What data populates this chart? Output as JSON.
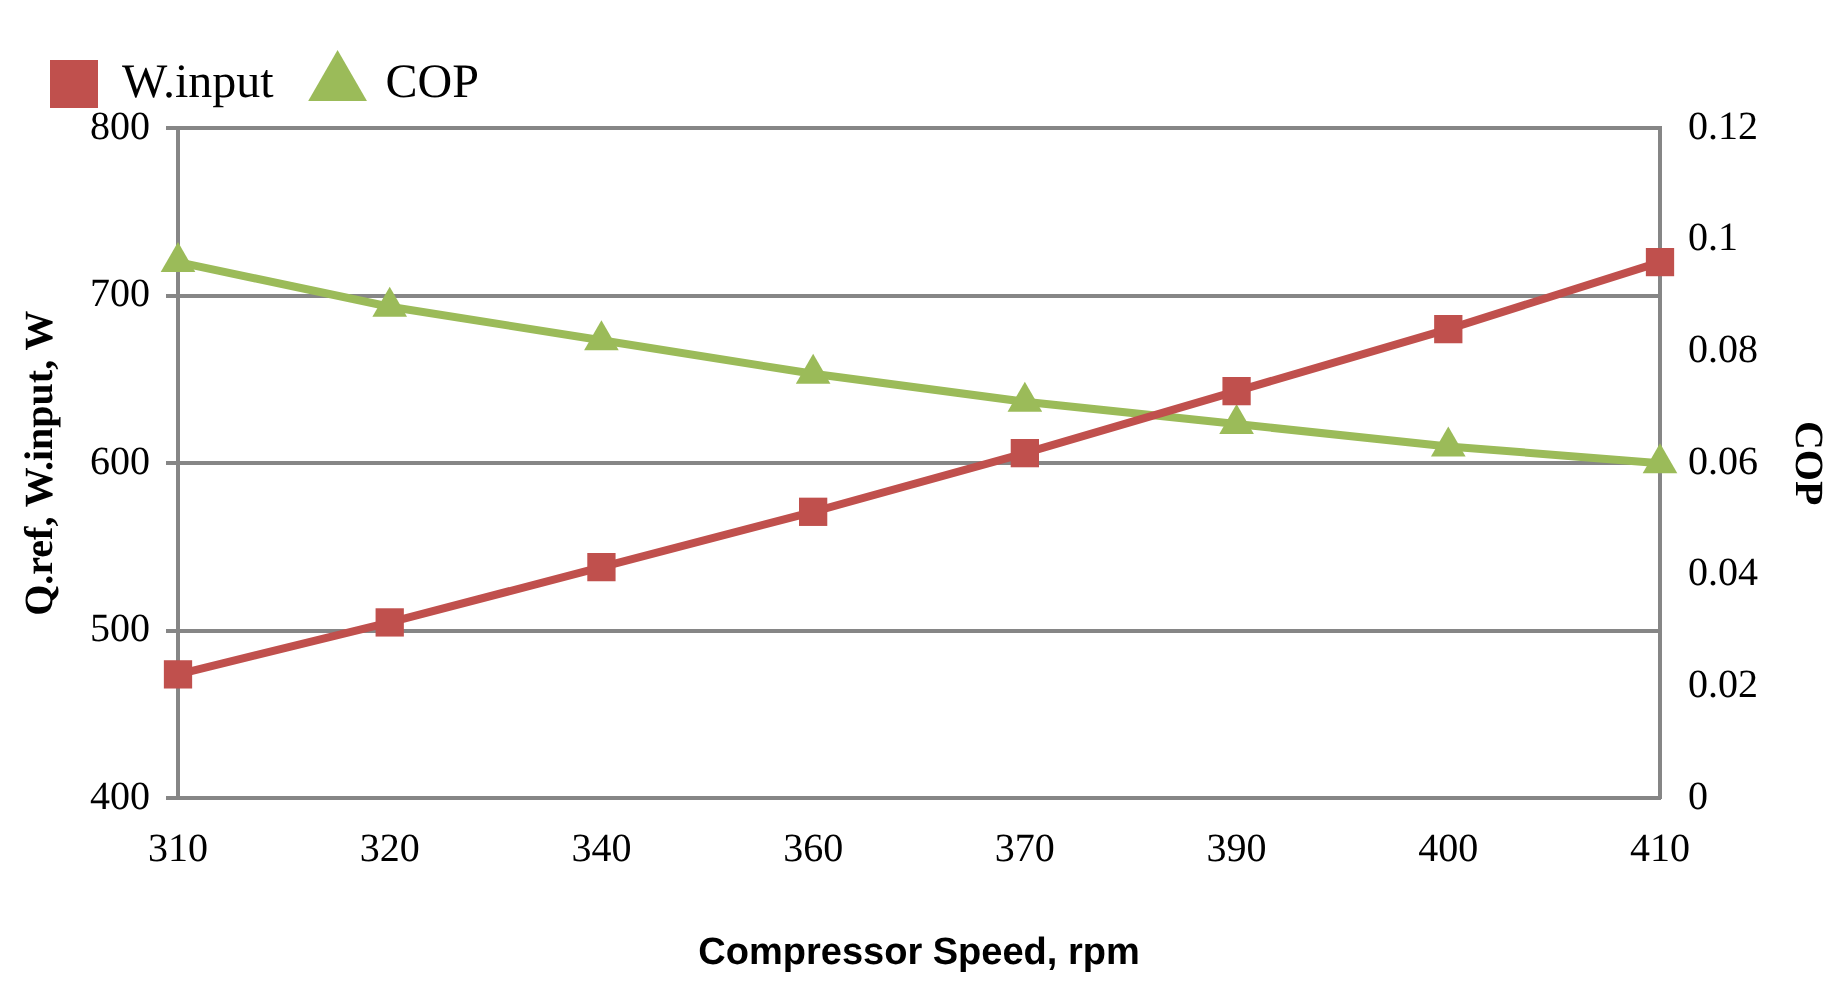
{
  "chart_data": {
    "type": "line",
    "xlabel": "Compressor Speed, rpm",
    "ylabel": "Q.ref, W.input, W",
    "y2label": "COP",
    "categories": [
      "310",
      "320",
      "340",
      "360",
      "370",
      "390",
      "400",
      "410"
    ],
    "series": [
      {
        "name": "W.input",
        "color": "#c0504d",
        "marker": "square",
        "values": [
          474,
          505,
          538,
          571,
          606,
          643,
          680,
          720
        ]
      },
      {
        "name": "COP",
        "color": "#9bbb59",
        "marker": "triangle",
        "axis": "y2",
        "values": [
          0.096,
          0.088,
          0.082,
          0.076,
          0.071,
          0.067,
          0.063,
          0.06
        ]
      }
    ],
    "ylim": [
      400,
      800
    ],
    "yticks": [
      400,
      500,
      600,
      700,
      800
    ],
    "y2lim": [
      0,
      0.12
    ],
    "y2ticks": [
      0,
      0.02,
      0.04,
      0.06,
      0.08,
      0.1,
      0.12
    ],
    "grid": "y",
    "legend": "top left"
  }
}
